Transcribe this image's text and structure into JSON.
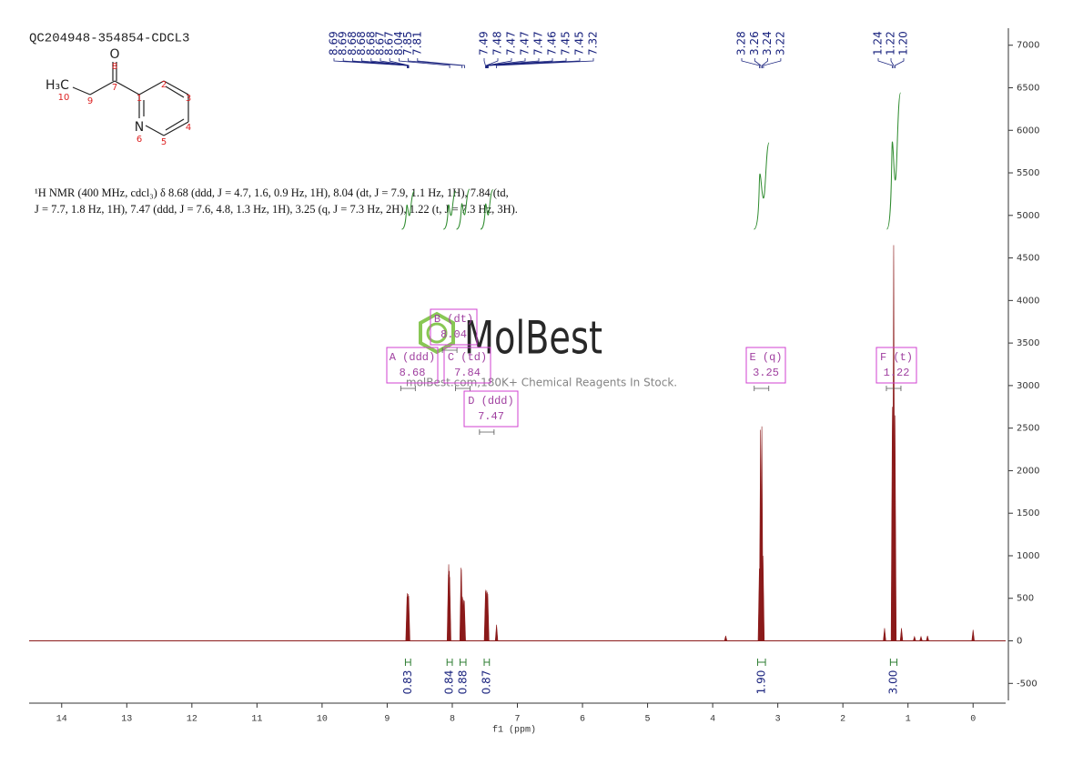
{
  "chart_data": {
    "type": "nmr",
    "title": "QC204948-354854-CDCL3",
    "x_label": "f1 (ppm)",
    "xlim": [
      14.5,
      -0.5
    ],
    "xticks": [
      14,
      13,
      12,
      11,
      10,
      9,
      8,
      7,
      6,
      5,
      4,
      3,
      2,
      1,
      0
    ],
    "ylim": [
      -700,
      7200
    ],
    "yticks": [
      -500,
      0,
      500,
      1000,
      1500,
      2000,
      2500,
      3000,
      3500,
      4000,
      4500,
      5000,
      5500,
      6000,
      6500,
      7000
    ],
    "color": "#8b1a1a",
    "description": [
      "¹H NMR (400 MHz, cdcl₃) δ 8.68 (ddd, J = 4.7, 1.6, 0.9 Hz, 1H), 8.04 (dt, J = 7.9, 1.1 Hz, 1H), 7.84 (td,",
      "J = 7.7, 1.8 Hz, 1H), 7.47 (ddd, J = 7.6, 4.8, 1.3 Hz, 1H), 3.25 (q, J = 7.3 Hz, 2H), 1.22 (t, J = 7.3 Hz, 3H)."
    ],
    "structure": {
      "symbols": [
        "O",
        "H₃C",
        "N"
      ],
      "numbers": [
        "8",
        "10",
        "9",
        "7",
        "1",
        "2",
        "3",
        "4",
        "5",
        "6"
      ]
    },
    "peak_labels": [
      8.69,
      8.69,
      8.68,
      8.68,
      8.68,
      8.67,
      8.67,
      8.04,
      7.85,
      7.81,
      7.49,
      7.48,
      7.47,
      7.47,
      7.47,
      7.46,
      7.45,
      7.45,
      7.32,
      3.28,
      3.26,
      3.24,
      3.22,
      1.24,
      1.22,
      {
        "value": 1.2,
        "label": "1.20"
      }
    ],
    "spectrum": {
      "x": [
        8.695,
        8.69,
        8.685,
        8.68,
        8.675,
        8.67,
        8.06,
        8.055,
        8.045,
        8.04,
        7.865,
        7.86,
        7.845,
        7.84,
        7.825,
        7.815,
        7.49,
        7.485,
        7.475,
        7.47,
        7.46,
        7.455,
        7.32,
        3.8,
        3.283,
        3.265,
        3.245,
        3.227,
        1.36,
        1.24,
        1.22,
        1.2,
        1.1,
        0.9,
        0.8,
        0.7,
        0.0
      ],
      "values": [
        520,
        560,
        540,
        550,
        510,
        530,
        780,
        900,
        820,
        750,
        860,
        840,
        520,
        500,
        480,
        470,
        580,
        600,
        560,
        590,
        570,
        550,
        190,
        60,
        850,
        2480,
        2520,
        1000,
        150,
        2750,
        4650,
        2650,
        150,
        50,
        50,
        60,
        130
      ]
    },
    "integrals": {
      "from": [
        8.72,
        8.08,
        7.88,
        7.51,
        3.31,
        1.27
      ],
      "to": [
        8.64,
        8.0,
        7.79,
        7.43,
        3.19,
        1.17
      ],
      "values": [
        0.83,
        0.84,
        0.88,
        0.87,
        1.9,
        3
      ],
      "value_labels": [
        "0.83",
        "0.84",
        "0.88",
        "0.87",
        "1.90",
        "3.00"
      ]
    },
    "multiplets": {
      "labels": [
        "A (ddd)",
        "B (dt)",
        "C (td)",
        "D (ddd)",
        "E (q)",
        "F (t)"
      ],
      "values": [
        8.68,
        8.04,
        7.84,
        7.47,
        3.25,
        1.22
      ]
    },
    "watermark": {
      "brand": "MolBest",
      "tagline": "molBest.com,180K+ Chemical Reagents In Stock."
    }
  }
}
